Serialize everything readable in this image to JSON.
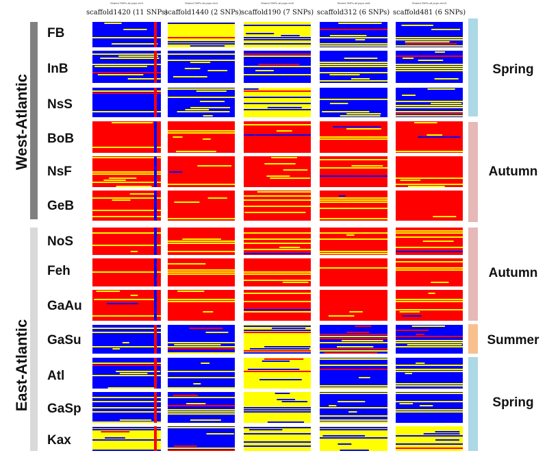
{
  "regions": [
    {
      "key": "west",
      "label": "West-Atlantic",
      "color": "#808080"
    },
    {
      "key": "east",
      "label": "East-Atlantic",
      "color": "#d9d9d9"
    }
  ],
  "columns": [
    {
      "super": "Shared SNPs all pops chr3",
      "title": "scaffold1420 (11 SNPs)"
    },
    {
      "super": "Shared SNPs all pops chr4",
      "title": "scaffold1440 (2 SNPs)"
    },
    {
      "super": "Shared SNPs all pops chr5",
      "title": "scaffold190 (7 SNPs)"
    },
    {
      "super": "Shared SNPs all pops chr8",
      "title": "scaffold312 (6 SNPs)"
    },
    {
      "super": "Shared SNPs all pops chr15",
      "title": "scaffold481 (6 SNPs)"
    }
  ],
  "populations": [
    {
      "name": "FB",
      "region": "west",
      "season": "Spring"
    },
    {
      "name": "InB",
      "region": "west",
      "season": "Spring"
    },
    {
      "name": "NsS",
      "region": "west",
      "season": "Spring"
    },
    {
      "name": "BoB",
      "region": "west",
      "season": "Autumn"
    },
    {
      "name": "NsF",
      "region": "west",
      "season": "Autumn"
    },
    {
      "name": "GeB",
      "region": "west",
      "season": "Autumn"
    },
    {
      "name": "NoS",
      "region": "east",
      "season": "Autumn"
    },
    {
      "name": "Feh",
      "region": "east",
      "season": "Autumn"
    },
    {
      "name": "GaAu",
      "region": "east",
      "season": "Autumn"
    },
    {
      "name": "GaSu",
      "region": "east",
      "season": "Summer"
    },
    {
      "name": "Atl",
      "region": "east",
      "season": "Spring"
    },
    {
      "name": "GaSp",
      "region": "east",
      "season": "Spring"
    },
    {
      "name": "Kax",
      "region": "east",
      "season": "Spring"
    }
  ],
  "seasons": [
    {
      "label": "Spring",
      "color": "#add8e6"
    },
    {
      "label": "Autumn",
      "color": "#e6b8b8"
    },
    {
      "label": "Autumn",
      "color": "#e6b8b8"
    },
    {
      "label": "Summer",
      "color": "#f7c08e"
    },
    {
      "label": "Spring",
      "color": "#add8e6"
    }
  ],
  "genotype_colors": {
    "homozygous_a": "#0000ff",
    "heterozygous": "#ffff00",
    "homozygous_b": "#ff0000"
  }
}
